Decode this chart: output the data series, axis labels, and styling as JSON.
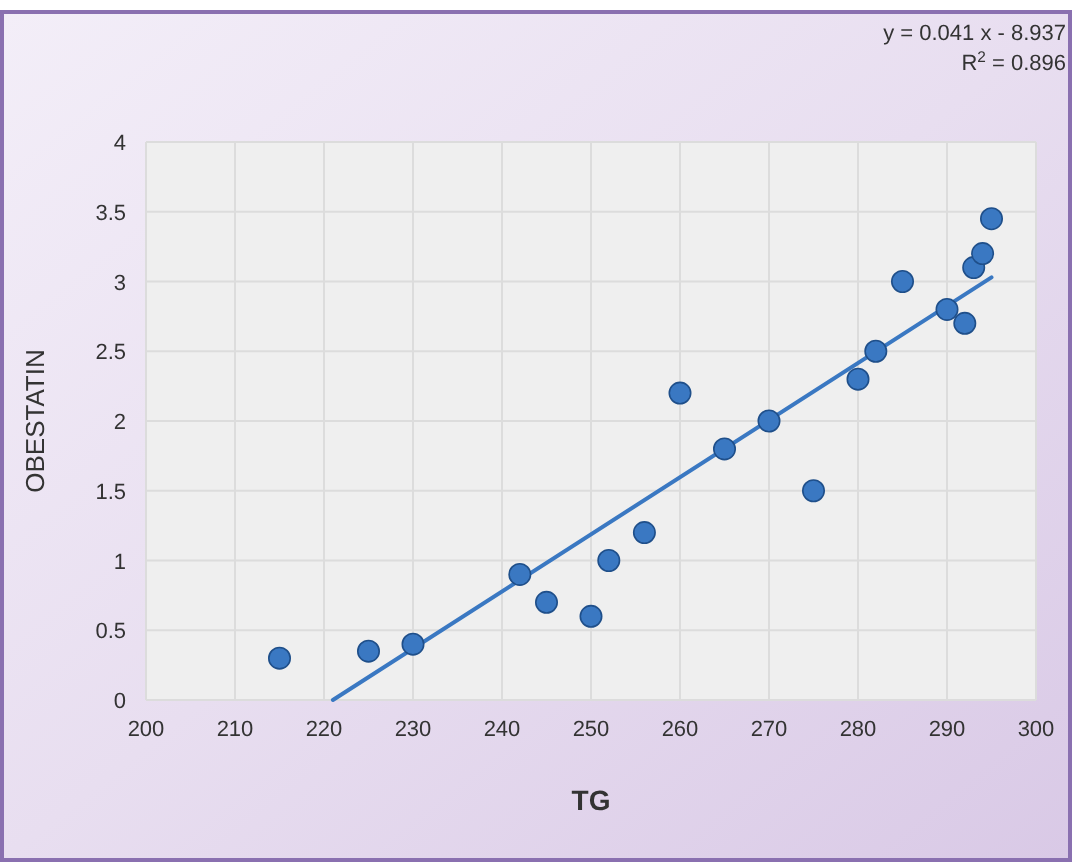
{
  "chart_data": {
    "type": "scatter",
    "xlabel": "TG",
    "ylabel": "OBESTATIN",
    "annotations": [
      "y = 0.041 x - 8.937",
      "R$^{2}$ = 0.896"
    ],
    "xlim": [
      200,
      300
    ],
    "xticks": [
      200,
      210,
      220,
      230,
      240,
      250,
      260,
      270,
      280,
      290,
      300
    ],
    "ylim": [
      0,
      4
    ],
    "yticks": [
      0,
      0.5,
      1,
      1.5,
      2,
      2.5,
      3,
      3.5,
      4
    ],
    "grid": true,
    "marker": "circle",
    "series": [
      {
        "color": "#3a78c2",
        "x": [
          215,
          225,
          230,
          242,
          245,
          250,
          252,
          256,
          260,
          265,
          270,
          275,
          280,
          282,
          285,
          290,
          292,
          293,
          294,
          295
        ],
        "values": [
          0.3,
          0.35,
          0.4,
          0.9,
          0.7,
          0.6,
          1.0,
          1.2,
          2.2,
          1.8,
          2.0,
          1.5,
          2.3,
          2.5,
          3.0,
          2.8,
          2.7,
          3.1,
          3.2,
          3.45
        ]
      },
      {
        "type": "line",
        "color": "#3a78c2",
        "x": [
          221,
          295
        ],
        "values": [
          0,
          3.03
        ],
        "line_style": "solid",
        "marker": "none"
      }
    ]
  }
}
